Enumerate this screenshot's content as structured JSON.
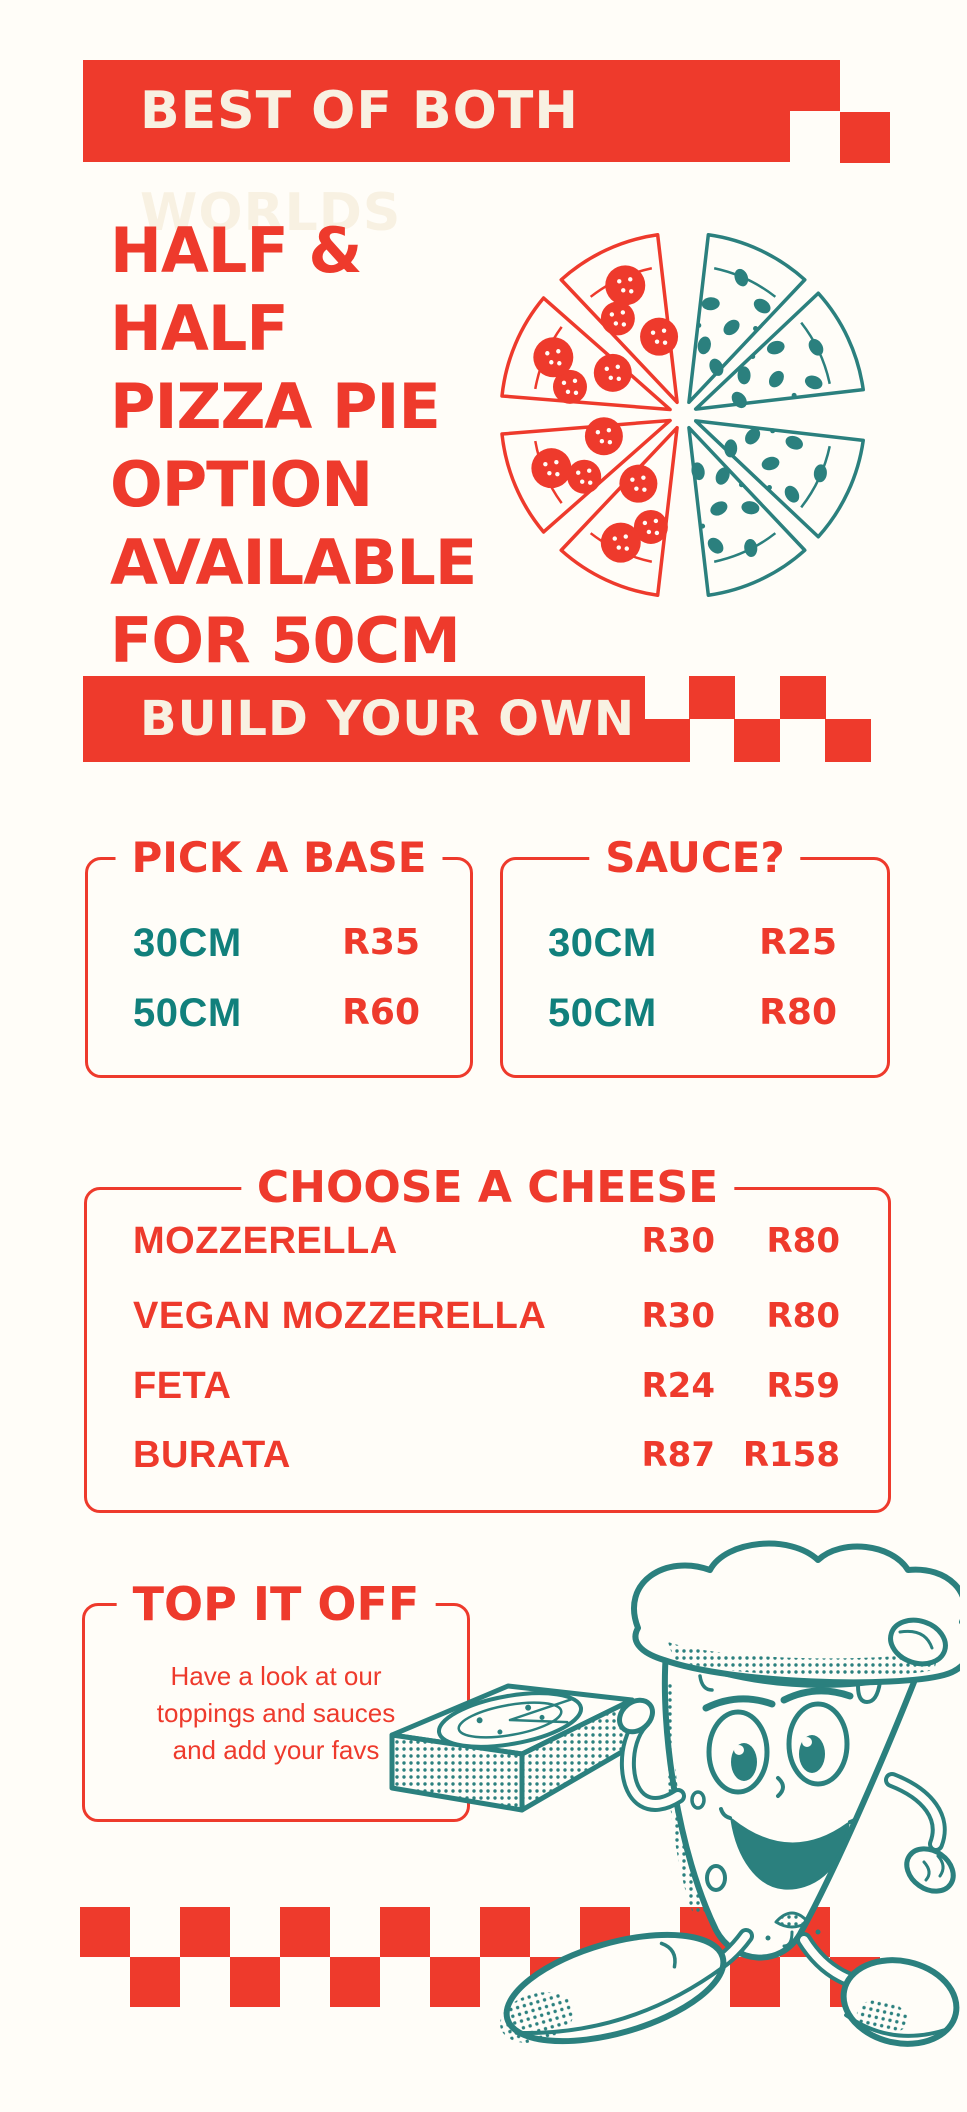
{
  "poster": {
    "background": "#FFFDF8",
    "colors": {
      "red": "#EE3A2C",
      "teal": "#11807C",
      "cream": "#F8F1E2"
    }
  },
  "top_banner": {
    "label": "BEST OF BOTH WORLDS"
  },
  "promo_headline": {
    "line1": "HALF & HALF",
    "line2": "PIZZA PIE",
    "line3": "OPTION",
    "line4": "AVAILABLE",
    "line5": "FOR 50CM"
  },
  "build_banner": {
    "label": "BUILD YOUR OWN"
  },
  "pick_a_base": {
    "title": "PICK A BASE",
    "rows": [
      {
        "size": "30CM",
        "price": "R35"
      },
      {
        "size": "50CM",
        "price": "R60"
      }
    ]
  },
  "sauce": {
    "title": "SAUCE?",
    "rows": [
      {
        "size": "30CM",
        "price": "R25"
      },
      {
        "size": "50CM",
        "price": "R80"
      }
    ]
  },
  "cheese": {
    "title": "CHOOSE A CHEESE",
    "rows": [
      {
        "name": "MOZZERELLA",
        "price_small": "R30",
        "price_large": "R80"
      },
      {
        "name": "VEGAN MOZZERELLA",
        "price_small": "R30",
        "price_large": "R80"
      },
      {
        "name": "FETA",
        "price_small": "R24",
        "price_large": "R59"
      },
      {
        "name": "BURATA",
        "price_small": "R87",
        "price_large": "R158"
      }
    ]
  },
  "top_it_off": {
    "title": "TOP IT OFF",
    "line1": "Have a look at our",
    "line2": "toppings and sauces",
    "line3": "and add your favs"
  },
  "illustrations": {
    "half_half_pizza": "half pepperoni (red) / half mushroom (teal) pizza",
    "mascot": "walking pizza slice mascot carrying a pizza box"
  }
}
